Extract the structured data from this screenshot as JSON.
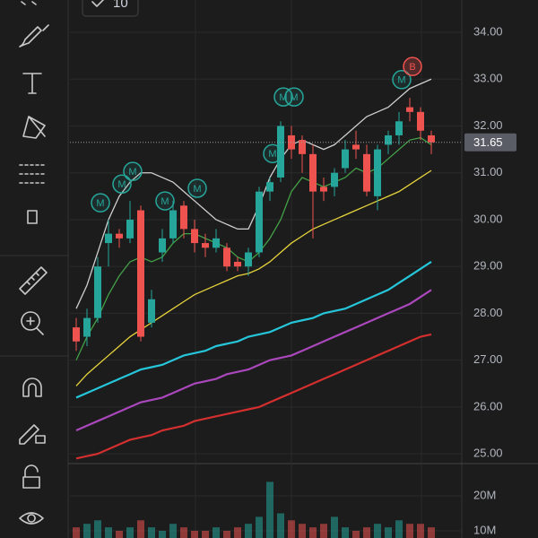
{
  "chart_data": {
    "type": "candlestick",
    "up_color": "#26a69a",
    "down_color": "#ef5350",
    "open": [
      27.7,
      27.5,
      27.9,
      29.5,
      29.7,
      29.6,
      30.2,
      27.8,
      29.3,
      29.6,
      30.3,
      29.8,
      29.5,
      29.4,
      29.4,
      29.1,
      29.0,
      29.3,
      30.6,
      30.9,
      31.8,
      31.7,
      31.4,
      30.7,
      30.7,
      31.1,
      31.6,
      31.4,
      30.5,
      31.6,
      31.8,
      32.4,
      32.3,
      31.8
    ],
    "high": [
      27.9,
      28.1,
      29.2,
      30.0,
      29.8,
      30.4,
      30.3,
      28.5,
      29.8,
      30.4,
      30.4,
      30.0,
      29.7,
      29.8,
      29.5,
      29.2,
      29.4,
      30.7,
      30.9,
      32.1,
      32.0,
      31.8,
      31.6,
      30.9,
      31.1,
      31.7,
      31.9,
      31.6,
      31.6,
      31.9,
      32.3,
      32.6,
      32.4,
      31.9
    ],
    "low": [
      27.2,
      27.3,
      27.8,
      29.0,
      29.4,
      29.5,
      27.4,
      27.7,
      29.1,
      29.5,
      29.6,
      29.3,
      29.2,
      29.3,
      28.9,
      28.9,
      28.8,
      29.2,
      30.4,
      30.8,
      31.3,
      31.0,
      29.6,
      30.4,
      30.5,
      31.0,
      31.3,
      30.5,
      30.2,
      31.4,
      31.6,
      32.1,
      31.7,
      31.4
    ],
    "close": [
      27.4,
      27.9,
      29.0,
      29.7,
      29.6,
      30.0,
      27.5,
      28.3,
      29.6,
      30.2,
      29.8,
      29.5,
      29.4,
      29.6,
      29.0,
      29.0,
      29.3,
      30.6,
      30.8,
      32.0,
      31.5,
      31.4,
      30.6,
      30.6,
      31.0,
      31.5,
      31.5,
      30.6,
      31.5,
      31.8,
      32.1,
      32.3,
      31.9,
      31.65
    ],
    "ylim": [
      24.83,
      34.69
    ],
    "yticks": [
      {
        "value": 25,
        "label": "25.00"
      },
      {
        "value": 26,
        "label": "26.00"
      },
      {
        "value": 27,
        "label": "27.00"
      },
      {
        "value": 28,
        "label": "28.00"
      },
      {
        "value": 29,
        "label": "29.00"
      },
      {
        "value": 30,
        "label": "30.00"
      },
      {
        "value": 31,
        "label": "31.00"
      },
      {
        "value": 32,
        "label": "32.00"
      },
      {
        "value": 33,
        "label": "33.00"
      },
      {
        "value": 34,
        "label": "34.00"
      }
    ],
    "last_price": 31.65,
    "last_price_label": "31.65",
    "overlays": [
      {
        "color": "#26c6da",
        "values": [
          26.2,
          26.3,
          26.4,
          26.5,
          26.6,
          26.7,
          26.8,
          26.85,
          26.9,
          27.0,
          27.1,
          27.15,
          27.2,
          27.3,
          27.35,
          27.4,
          27.5,
          27.55,
          27.6,
          27.7,
          27.8,
          27.85,
          27.9,
          28.0,
          28.05,
          28.1,
          28.2,
          28.3,
          28.4,
          28.5,
          28.65,
          28.8,
          28.95,
          29.1
        ]
      },
      {
        "color": "#ab47bc",
        "values": [
          25.5,
          25.6,
          25.7,
          25.8,
          25.9,
          26.0,
          26.1,
          26.15,
          26.2,
          26.3,
          26.4,
          26.5,
          26.55,
          26.6,
          26.7,
          26.75,
          26.8,
          26.9,
          27.0,
          27.05,
          27.1,
          27.2,
          27.3,
          27.4,
          27.5,
          27.6,
          27.7,
          27.8,
          27.9,
          28.0,
          28.1,
          28.2,
          28.35,
          28.5
        ]
      },
      {
        "color": "#d32f2f",
        "values": [
          24.9,
          24.95,
          25.0,
          25.1,
          25.2,
          25.3,
          25.35,
          25.4,
          25.5,
          25.55,
          25.6,
          25.7,
          25.75,
          25.8,
          25.85,
          25.9,
          25.95,
          26.0,
          26.1,
          26.2,
          26.3,
          26.4,
          26.5,
          26.6,
          26.7,
          26.8,
          26.9,
          27.0,
          27.1,
          27.2,
          27.3,
          27.4,
          27.5,
          27.55
        ]
      },
      {
        "color": "#e6d33c",
        "values": [
          26.45,
          26.7,
          26.9,
          27.1,
          27.3,
          27.5,
          27.65,
          27.8,
          27.95,
          28.1,
          28.25,
          28.4,
          28.5,
          28.6,
          28.7,
          28.8,
          28.85,
          28.95,
          29.1,
          29.3,
          29.5,
          29.65,
          29.8,
          29.9,
          30.0,
          30.1,
          30.2,
          30.3,
          30.4,
          30.5,
          30.6,
          30.75,
          30.9,
          31.05
        ]
      },
      {
        "color": "#43a047",
        "values": [
          27.0,
          27.5,
          27.9,
          28.4,
          28.8,
          29.1,
          29.2,
          29.1,
          29.2,
          29.5,
          29.7,
          29.7,
          29.6,
          29.5,
          29.4,
          29.2,
          29.1,
          29.3,
          29.6,
          30.0,
          30.6,
          30.9,
          30.8,
          30.7,
          30.8,
          30.9,
          31.1,
          31.0,
          31.1,
          31.3,
          31.5,
          31.7,
          31.75,
          31.6
        ]
      },
      {
        "color": "#cfcfcf",
        "values": [
          28.1,
          28.6,
          29.3,
          30.0,
          30.5,
          30.8,
          31.0,
          31.0,
          30.9,
          30.8,
          30.6,
          30.4,
          30.2,
          30.0,
          29.9,
          29.8,
          29.8,
          30.3,
          30.9,
          31.3,
          31.6,
          31.7,
          31.6,
          31.5,
          31.6,
          31.8,
          32.0,
          32.2,
          32.3,
          32.4,
          32.6,
          32.8,
          32.9,
          33.0
        ]
      }
    ],
    "markers": [
      {
        "label": "M",
        "index": 2,
        "price": 30.36,
        "color": "#26a69a"
      },
      {
        "label": "M",
        "index": 4,
        "price": 30.76,
        "color": "#26a69a"
      },
      {
        "label": "M",
        "index": 5,
        "price": 31.03,
        "color": "#26a69a"
      },
      {
        "label": "M",
        "index": 8,
        "price": 30.4,
        "color": "#26a69a"
      },
      {
        "label": "M",
        "index": 11,
        "price": 30.67,
        "color": "#26a69a"
      },
      {
        "label": "M",
        "index": 18,
        "price": 31.41,
        "color": "#26a69a"
      },
      {
        "label": "M",
        "index": 19,
        "price": 32.62,
        "color": "#26a69a"
      },
      {
        "label": "M",
        "index": 20,
        "price": 32.62,
        "color": "#26a69a"
      },
      {
        "label": "M",
        "index": 30,
        "price": 32.99,
        "color": "#26a69a"
      },
      {
        "label": "B",
        "index": 31,
        "price": 33.27,
        "color": "#ef5350"
      }
    ],
    "volume": [
      11000000,
      12000000,
      13000000,
      11000000,
      10000000,
      11000000,
      13000000,
      11000000,
      10000000,
      12000000,
      11000000,
      10000000,
      10000000,
      11000000,
      10000000,
      11000000,
      12000000,
      14000000,
      24000000,
      15000000,
      13000000,
      12000000,
      11000000,
      12000000,
      14000000,
      11000000,
      10000000,
      11000000,
      12000000,
      11000000,
      13000000,
      12000000,
      12000000,
      11000000
    ],
    "volume_ylim": [
      7950000,
      28460000
    ],
    "volume_yticks": [
      {
        "value": 10000000,
        "label": "10M"
      },
      {
        "value": 20000000,
        "label": "20M"
      }
    ],
    "interval_button": "10"
  }
}
